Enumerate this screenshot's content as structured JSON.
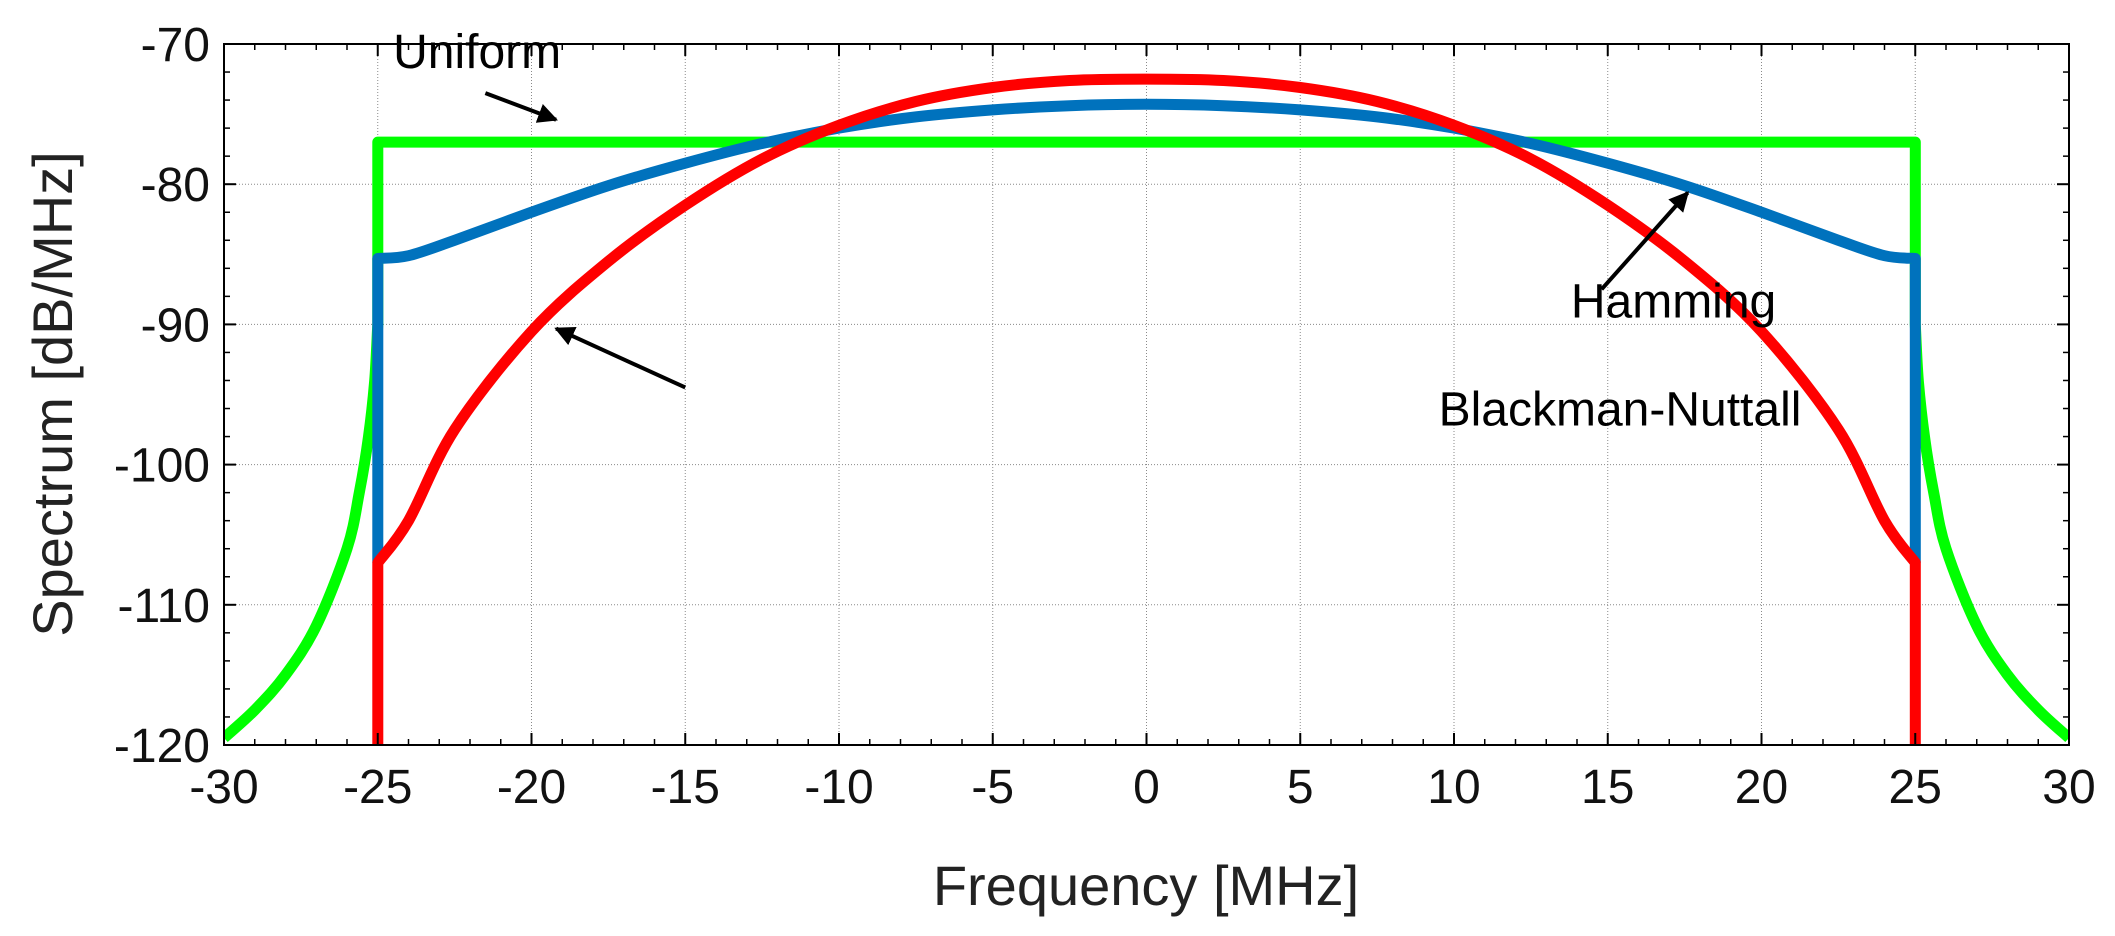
{
  "chart_data": {
    "type": "line",
    "title": "",
    "xlabel": "Frequency [MHz]",
    "ylabel": "Spectrum [dB/MHz]",
    "xlim": [
      -30,
      30
    ],
    "ylim": [
      -120,
      -70
    ],
    "xticks": [
      -30,
      -25,
      -20,
      -15,
      -10,
      -5,
      0,
      5,
      10,
      15,
      20,
      25,
      30
    ],
    "yticks": [
      -70,
      -80,
      -90,
      -100,
      -110,
      -120
    ],
    "grid": true,
    "series": [
      {
        "name": "Uniform",
        "color": "#00ff00",
        "x": [
          -30,
          -29,
          -28,
          -27,
          -26,
          -25.6,
          -25.3,
          -25.1,
          -25,
          -25,
          25,
          25,
          25.1,
          25.3,
          25.6,
          26,
          27,
          28,
          29,
          30
        ],
        "y": [
          -119.5,
          -117.5,
          -115,
          -111.5,
          -106,
          -102,
          -98,
          -94,
          -90,
          -77,
          -77,
          -90,
          -94,
          -98,
          -102,
          -106,
          -111.5,
          -115,
          -117.5,
          -119.5
        ]
      },
      {
        "name": "Hamming",
        "color": "#0072bd",
        "x": [
          -25,
          -25,
          -24,
          -22.5,
          -20,
          -17.5,
          -15,
          -12.5,
          -10,
          -7.5,
          -5,
          -2.5,
          0,
          2.5,
          5,
          7.5,
          10,
          12.5,
          15,
          17.5,
          20,
          22.5,
          24,
          25,
          25
        ],
        "y": [
          -107,
          -85.3,
          -85.1,
          -84,
          -82,
          -80.1,
          -78.5,
          -77.1,
          -76,
          -75.2,
          -74.7,
          -74.4,
          -74.3,
          -74.4,
          -74.7,
          -75.2,
          -76,
          -77.1,
          -78.5,
          -80.1,
          -82,
          -84,
          -85.1,
          -85.3,
          -107
        ]
      },
      {
        "name": "Blackman-Nuttall",
        "color": "#ff0000",
        "x": [
          -25,
          -25,
          -24,
          -22.5,
          -20,
          -17.5,
          -15,
          -12.5,
          -10,
          -7.5,
          -5,
          -2.5,
          0,
          2.5,
          5,
          7.5,
          10,
          12.5,
          15,
          17.5,
          20,
          22.5,
          24,
          25,
          25
        ],
        "y": [
          -120.5,
          -107,
          -104,
          -97.5,
          -90.5,
          -85.5,
          -81.5,
          -78.2,
          -75.8,
          -74.1,
          -73.1,
          -72.6,
          -72.5,
          -72.6,
          -73.1,
          -74.1,
          -75.8,
          -78.2,
          -81.5,
          -85.5,
          -90.5,
          -97.5,
          -104,
          -107,
          -120.5
        ]
      }
    ],
    "annotations": [
      {
        "text": "Uniform",
        "series": "Uniform",
        "text_x": -24.5,
        "text_y": -71.7,
        "arrow_from": [
          -21.5,
          -73.5
        ],
        "arrow_to": [
          -19.2,
          -75.4
        ]
      },
      {
        "text": "Hamming",
        "series": "Hamming",
        "text_x": 13.8,
        "text_y": -89.5,
        "arrow_from": [
          14.8,
          -87.5
        ],
        "arrow_to": [
          17.6,
          -80.6
        ]
      },
      {
        "text": "Blackman-Nuttall",
        "series": "Blackman-Nuttall",
        "text_x": 9.5,
        "text_y": -97.2,
        "arrow_from": [
          -15,
          -94.5
        ],
        "arrow_to": [
          -19.2,
          -90.3
        ]
      }
    ]
  }
}
